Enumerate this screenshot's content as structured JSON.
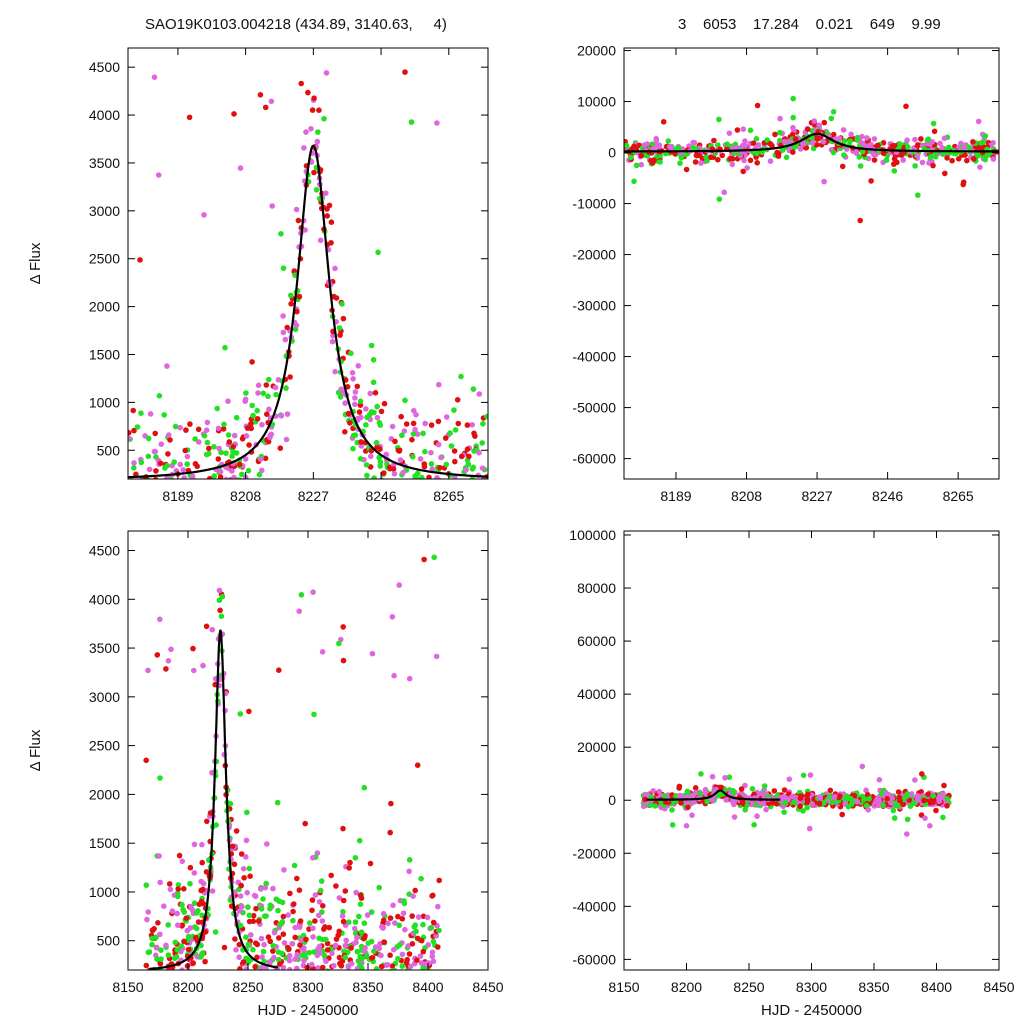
{
  "header": {
    "left_title": "SAO19K0103.004218 (434.89, 3140.63,     4)",
    "right_title": "3    6053    17.284    0.021    649    9.99"
  },
  "colors": {
    "red": "#e01010",
    "green": "#22e022",
    "violet": "#e066e0",
    "model": "#000000"
  },
  "chart_data": [
    {
      "type": "scatter",
      "panel": "top-left",
      "xlabel": "",
      "ylabel": "Δ Flux",
      "xlim": [
        8175,
        8276
      ],
      "ylim": [
        200,
        4700
      ],
      "xticks": [
        8189,
        8208,
        8227,
        8246,
        8265
      ],
      "yticks": [
        500,
        1000,
        1500,
        2000,
        2500,
        3000,
        3500,
        4000,
        4500
      ],
      "model": {
        "type": "lorentzian",
        "t0": 8227,
        "amplitude": 3500,
        "width": 5.5,
        "baseline": 180
      }
    },
    {
      "type": "scatter",
      "panel": "top-right",
      "xlabel": "",
      "ylabel": "",
      "xlim": [
        8175,
        8276
      ],
      "ylim": [
        -64000,
        20500
      ],
      "xticks": [
        8189,
        8208,
        8227,
        8246,
        8265
      ],
      "yticks": [
        20000,
        10000,
        0,
        -10000,
        -20000,
        -30000,
        -40000,
        -50000,
        -60000
      ],
      "model": {
        "type": "lorentzian",
        "t0": 8227,
        "amplitude": 3500,
        "width": 5.5,
        "baseline": 180
      }
    },
    {
      "type": "scatter",
      "panel": "bottom-left",
      "xlabel": "HJD - 2450000",
      "ylabel": "Δ Flux",
      "xlim": [
        8150,
        8450
      ],
      "ylim": [
        200,
        4700
      ],
      "xticks": [
        8150,
        8200,
        8250,
        8300,
        8350,
        8400,
        8450
      ],
      "yticks": [
        500,
        1000,
        1500,
        2000,
        2500,
        3000,
        3500,
        4000,
        4500
      ],
      "model": {
        "type": "lorentzian",
        "t0": 8227,
        "amplitude": 3500,
        "width": 5.5,
        "baseline": 180
      }
    },
    {
      "type": "scatter",
      "panel": "bottom-right",
      "xlabel": "HJD - 2450000",
      "ylabel": "",
      "xlim": [
        8150,
        8450
      ],
      "ylim": [
        -64000,
        101500
      ],
      "xticks": [
        8150,
        8200,
        8250,
        8300,
        8350,
        8400,
        8450
      ],
      "yticks": [
        100000,
        80000,
        60000,
        40000,
        20000,
        0,
        -20000,
        -40000,
        -60000
      ],
      "model": {
        "type": "lorentzian",
        "t0": 8227,
        "amplitude": 3500,
        "width": 5.5,
        "baseline": 180
      }
    }
  ]
}
